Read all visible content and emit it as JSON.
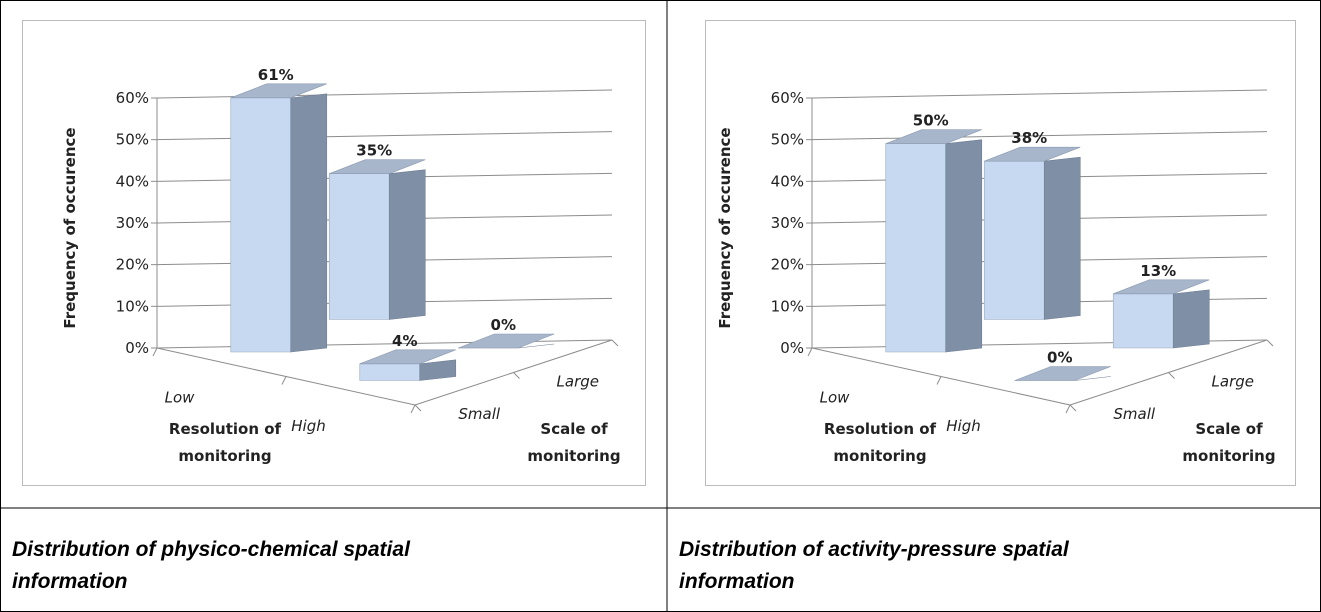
{
  "chart_data": [
    {
      "type": "bar3d",
      "title": "Distribution of physico-chemical spatial information",
      "ylabel": "Frequency of occurence",
      "xlabel": "Resolution of monitoring",
      "zlabel": "Scale of monitoring",
      "categories": [
        "Low",
        "High"
      ],
      "series": [
        {
          "name": "Small",
          "color": "#c6d9f1",
          "values": [
            61,
            4
          ],
          "value_labels": [
            "61%",
            "4%"
          ]
        },
        {
          "name": "Large",
          "color": "#c6d9f1",
          "values": [
            35,
            0
          ],
          "value_labels": [
            "35%",
            "0%"
          ]
        }
      ],
      "ylim": [
        0,
        60
      ],
      "yticks": [
        {
          "value": 0,
          "label": "0%"
        },
        {
          "value": 10,
          "label": "10%"
        },
        {
          "value": 20,
          "label": "20%"
        },
        {
          "value": 30,
          "label": "30%"
        },
        {
          "value": 40,
          "label": "40%"
        },
        {
          "value": 50,
          "label": "50%"
        },
        {
          "value": 60,
          "label": "60%"
        }
      ],
      "grid": true
    },
    {
      "type": "bar3d",
      "title": "Distribution of activity-pressure spatial information",
      "ylabel": "Frequency of occurence",
      "xlabel": "Resolution of monitoring",
      "zlabel": "Scale of monitoring",
      "categories": [
        "Low",
        "High"
      ],
      "series": [
        {
          "name": "Small",
          "color": "#c6d9f1",
          "values": [
            50,
            0
          ],
          "value_labels": [
            "50%",
            "0%"
          ]
        },
        {
          "name": "Large",
          "color": "#c6d9f1",
          "values": [
            38,
            13
          ],
          "value_labels": [
            "38%",
            "13%"
          ]
        }
      ],
      "ylim": [
        0,
        60
      ],
      "yticks": [
        {
          "value": 0,
          "label": "0%"
        },
        {
          "value": 10,
          "label": "10%"
        },
        {
          "value": 20,
          "label": "20%"
        },
        {
          "value": 30,
          "label": "30%"
        },
        {
          "value": 40,
          "label": "40%"
        },
        {
          "value": 50,
          "label": "50%"
        },
        {
          "value": 60,
          "label": "60%"
        }
      ],
      "grid": true
    }
  ]
}
